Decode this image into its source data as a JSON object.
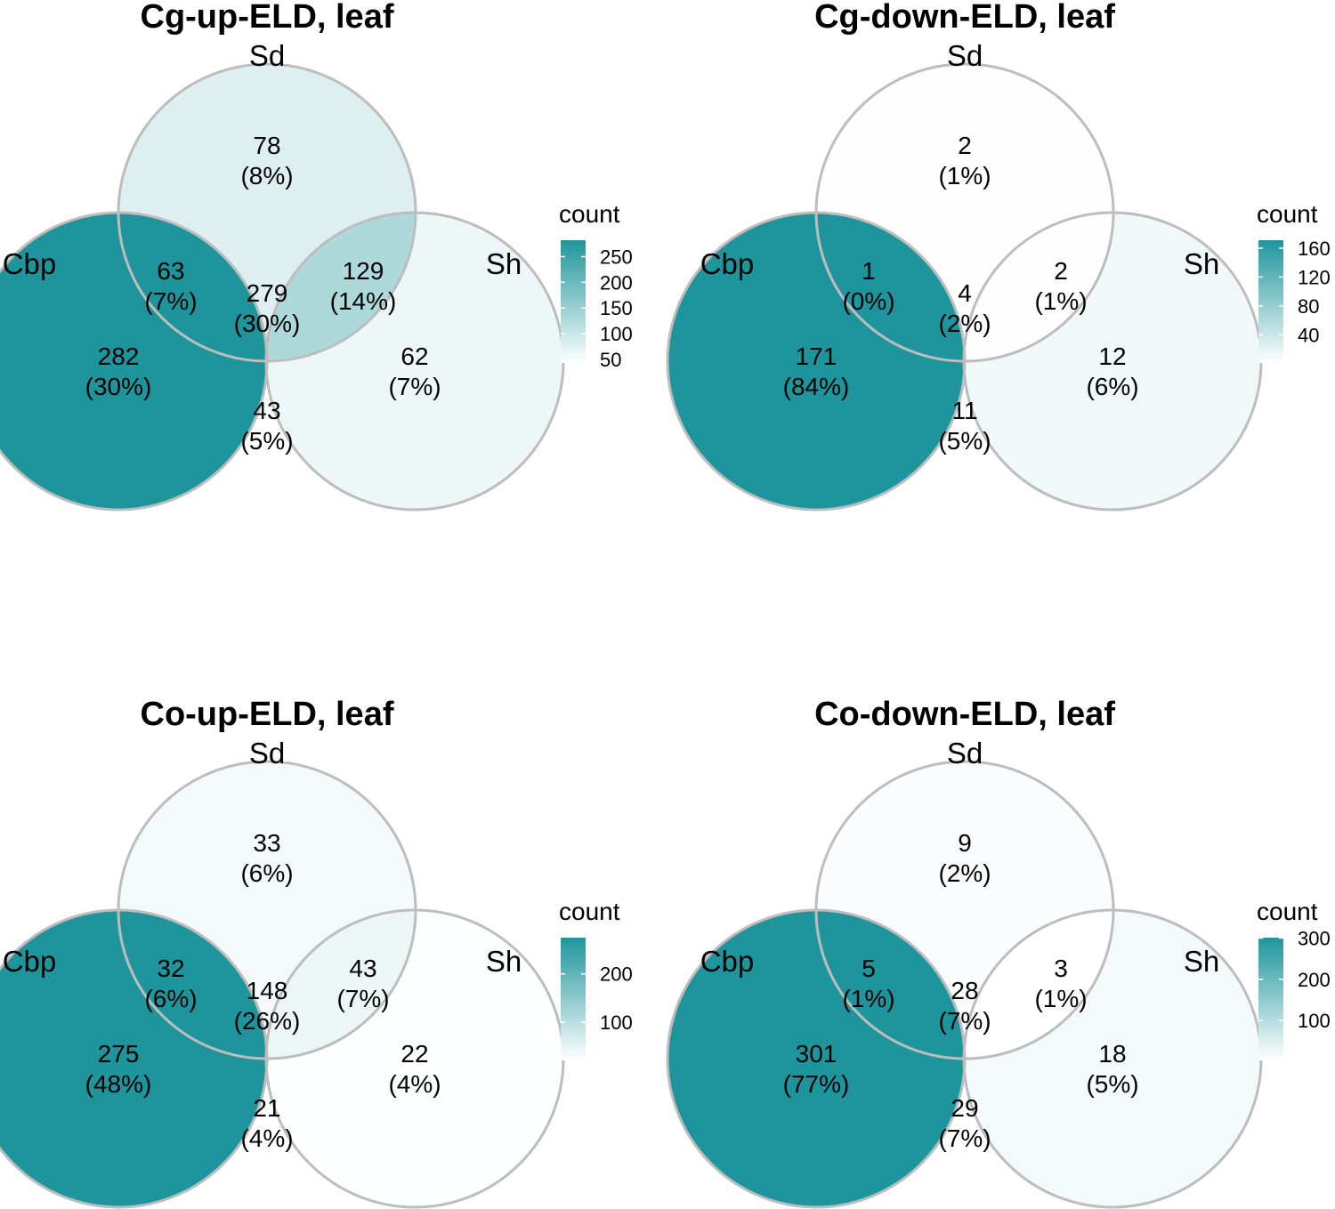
{
  "chart_data": [
    {
      "type": "venn",
      "title": "Cg-up-ELD, leaf",
      "sets": [
        "Sd",
        "Cbp",
        "Sh"
      ],
      "regions": {
        "Sd_only": {
          "count": 78,
          "pct": "(8%)"
        },
        "Cbp_Sd": {
          "count": 63,
          "pct": "(7%)"
        },
        "Sd_Sh": {
          "count": 129,
          "pct": "(14%)"
        },
        "all": {
          "count": 279,
          "pct": "(30%)"
        },
        "Cbp_only": {
          "count": 282,
          "pct": "(30%)"
        },
        "Sh_only": {
          "count": 62,
          "pct": "(7%)"
        },
        "Cbp_Sh": {
          "count": 43,
          "pct": "(5%)"
        }
      },
      "legend": {
        "title": "count",
        "min": 43,
        "max": 282,
        "ticks": [
          250,
          200,
          150,
          100,
          50
        ]
      }
    },
    {
      "type": "venn",
      "title": "Cg-down-ELD, leaf",
      "sets": [
        "Sd",
        "Cbp",
        "Sh"
      ],
      "regions": {
        "Sd_only": {
          "count": 2,
          "pct": "(1%)"
        },
        "Cbp_Sd": {
          "count": 1,
          "pct": "(0%)"
        },
        "Sd_Sh": {
          "count": 2,
          "pct": "(1%)"
        },
        "all": {
          "count": 4,
          "pct": "(2%)"
        },
        "Cbp_only": {
          "count": 171,
          "pct": "(84%)"
        },
        "Sh_only": {
          "count": 12,
          "pct": "(6%)"
        },
        "Cbp_Sh": {
          "count": 11,
          "pct": "(5%)"
        }
      },
      "legend": {
        "title": "count",
        "min": 1,
        "max": 171,
        "ticks": [
          160,
          120,
          80,
          40
        ]
      }
    },
    {
      "type": "venn",
      "title": "Co-up-ELD, leaf",
      "sets": [
        "Sd",
        "Cbp",
        "Sh"
      ],
      "regions": {
        "Sd_only": {
          "count": 33,
          "pct": "(6%)"
        },
        "Cbp_Sd": {
          "count": 32,
          "pct": "(6%)"
        },
        "Sd_Sh": {
          "count": 43,
          "pct": "(7%)"
        },
        "all": {
          "count": 148,
          "pct": "(26%)"
        },
        "Cbp_only": {
          "count": 275,
          "pct": "(48%)"
        },
        "Sh_only": {
          "count": 22,
          "pct": "(4%)"
        },
        "Cbp_Sh": {
          "count": 21,
          "pct": "(4%)"
        }
      },
      "legend": {
        "title": "count",
        "min": 21,
        "max": 275,
        "ticks": [
          200,
          100
        ]
      }
    },
    {
      "type": "venn",
      "title": "Co-down-ELD, leaf",
      "sets": [
        "Sd",
        "Cbp",
        "Sh"
      ],
      "regions": {
        "Sd_only": {
          "count": 9,
          "pct": "(2%)"
        },
        "Cbp_Sd": {
          "count": 5,
          "pct": "(1%)"
        },
        "Sd_Sh": {
          "count": 3,
          "pct": "(1%)"
        },
        "all": {
          "count": 28,
          "pct": "(7%)"
        },
        "Cbp_only": {
          "count": 301,
          "pct": "(77%)"
        },
        "Sh_only": {
          "count": 18,
          "pct": "(5%)"
        },
        "Cbp_Sh": {
          "count": 29,
          "pct": "(7%)"
        }
      },
      "legend": {
        "title": "count",
        "min": 3,
        "max": 301,
        "ticks": [
          300,
          200,
          100
        ]
      }
    }
  ],
  "colors": {
    "fill_low": "#ffffff",
    "fill_high": "#1e959c",
    "outline": "#bdbdbd"
  }
}
